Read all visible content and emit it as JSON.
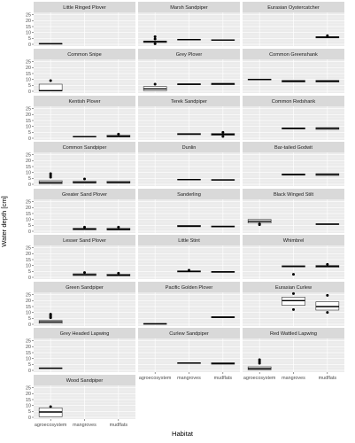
{
  "chart_data": {
    "type": "boxplot",
    "xlabel": "Habitat",
    "ylabel": "Water depth [cm]",
    "categories": [
      "agroecosystem",
      "mangroves",
      "mudflats"
    ],
    "y_ticks": [
      0,
      5,
      10,
      15,
      20,
      25
    ],
    "ylim": [
      -1.5,
      27
    ],
    "grid": true,
    "facets": [
      {
        "title": "Little Ringed Plover",
        "boxes": [
          {
            "category": "agroecosystem",
            "q1": 0.3,
            "median": 0.5,
            "q3": 0.7,
            "outliers": []
          }
        ]
      },
      {
        "title": "Marsh Sandpiper",
        "boxes": [
          {
            "category": "agroecosystem",
            "q1": 1.5,
            "median": 2.2,
            "q3": 2.8,
            "outliers": [
              0.5,
              4.5,
              6.5
            ]
          },
          {
            "category": "mangroves",
            "q1": 3.6,
            "median": 4.0,
            "q3": 4.3,
            "outliers": []
          },
          {
            "category": "mudflats",
            "q1": 3.3,
            "median": 3.6,
            "q3": 3.9,
            "outliers": []
          }
        ]
      },
      {
        "title": "Eurasian Oystercatcher",
        "boxes": [
          {
            "category": "mudflats",
            "q1": 5.4,
            "median": 6.0,
            "q3": 6.5,
            "outliers": [
              7.3
            ]
          }
        ]
      },
      {
        "title": "Common Snipe",
        "boxes": [
          {
            "category": "agroecosystem",
            "q1": 0.2,
            "median": 0.5,
            "q3": 6.0,
            "outliers": [
              9.0
            ]
          }
        ]
      },
      {
        "title": "Grey Plover",
        "boxes": [
          {
            "category": "agroecosystem",
            "q1": 0.5,
            "median": 2.0,
            "q3": 4.0,
            "outliers": [
              6.0
            ]
          },
          {
            "category": "mangroves",
            "q1": 5.5,
            "median": 6.0,
            "q3": 6.3,
            "outliers": []
          },
          {
            "category": "mudflats",
            "q1": 5.5,
            "median": 6.2,
            "q3": 6.8,
            "outliers": []
          }
        ]
      },
      {
        "title": "Common Greenshank",
        "boxes": [
          {
            "category": "agroecosystem",
            "q1": 9.6,
            "median": 10.0,
            "q3": 10.3,
            "outliers": []
          },
          {
            "category": "mangroves",
            "q1": 7.8,
            "median": 8.5,
            "q3": 9.2,
            "outliers": []
          },
          {
            "category": "mudflats",
            "q1": 7.8,
            "median": 8.5,
            "q3": 9.2,
            "outliers": []
          }
        ]
      },
      {
        "title": "Kentish Plover",
        "boxes": [
          {
            "category": "mangroves",
            "q1": 1.0,
            "median": 1.3,
            "q3": 1.6,
            "outliers": []
          },
          {
            "category": "mudflats",
            "q1": 1.0,
            "median": 1.6,
            "q3": 2.5,
            "outliers": [
              3.5
            ]
          }
        ]
      },
      {
        "title": "Terek Sandpiper",
        "boxes": [
          {
            "category": "mangroves",
            "q1": 3.0,
            "median": 3.5,
            "q3": 4.0,
            "outliers": []
          },
          {
            "category": "mudflats",
            "q1": 2.5,
            "median": 3.2,
            "q3": 4.0,
            "outliers": [
              1.5,
              5.0
            ]
          }
        ]
      },
      {
        "title": "Common Redshank",
        "boxes": [
          {
            "category": "mangroves",
            "q1": 7.8,
            "median": 8.3,
            "q3": 8.8,
            "outliers": []
          },
          {
            "category": "mudflats",
            "q1": 7.5,
            "median": 8.3,
            "q3": 9.0,
            "outliers": []
          }
        ]
      },
      {
        "title": "Common Sandpiper",
        "boxes": [
          {
            "category": "agroecosystem",
            "q1": 0.5,
            "median": 1.5,
            "q3": 3.0,
            "outliers": [
              6.0,
              7.5,
              9.0
            ]
          },
          {
            "category": "mangroves",
            "q1": 1.0,
            "median": 1.5,
            "q3": 2.5,
            "outliers": [
              4.5
            ]
          },
          {
            "category": "mudflats",
            "q1": 1.0,
            "median": 1.5,
            "q3": 2.5,
            "outliers": []
          }
        ]
      },
      {
        "title": "Dunlin",
        "boxes": [
          {
            "category": "mangroves",
            "q1": 3.8,
            "median": 4.0,
            "q3": 4.3,
            "outliers": []
          },
          {
            "category": "mudflats",
            "q1": 3.4,
            "median": 3.7,
            "q3": 4.0,
            "outliers": []
          }
        ]
      },
      {
        "title": "Bar-tailed Godwit",
        "boxes": [
          {
            "category": "mangroves",
            "q1": 7.7,
            "median": 8.3,
            "q3": 8.8,
            "outliers": []
          },
          {
            "category": "mudflats",
            "q1": 7.5,
            "median": 8.3,
            "q3": 9.0,
            "outliers": []
          }
        ]
      },
      {
        "title": "Greater Sand Plover",
        "boxes": [
          {
            "category": "mangroves",
            "q1": 1.2,
            "median": 1.8,
            "q3": 2.5,
            "outliers": [
              3.5
            ]
          },
          {
            "category": "mudflats",
            "q1": 1.0,
            "median": 1.6,
            "q3": 2.5,
            "outliers": [
              3.5
            ]
          }
        ]
      },
      {
        "title": "Sanderling",
        "boxes": [
          {
            "category": "mangroves",
            "q1": 3.8,
            "median": 4.3,
            "q3": 5.0,
            "outliers": []
          },
          {
            "category": "mudflats",
            "q1": 3.6,
            "median": 4.0,
            "q3": 4.5,
            "outliers": []
          }
        ]
      },
      {
        "title": "Black Winged Stilt",
        "boxes": [
          {
            "category": "agroecosystem",
            "q1": 7.0,
            "median": 8.5,
            "q3": 10.0,
            "outliers": [
              5.5,
              6.5
            ]
          },
          {
            "category": "mudflats",
            "q1": 5.7,
            "median": 6.0,
            "q3": 6.3,
            "outliers": []
          }
        ]
      },
      {
        "title": "Lesser Sand Plover",
        "boxes": [
          {
            "category": "mangroves",
            "q1": 1.5,
            "median": 2.2,
            "q3": 3.0,
            "outliers": [
              4.0
            ]
          },
          {
            "category": "mudflats",
            "q1": 1.2,
            "median": 1.8,
            "q3": 2.6,
            "outliers": [
              3.5
            ]
          }
        ]
      },
      {
        "title": "Little Stint",
        "boxes": [
          {
            "category": "mangroves",
            "q1": 4.5,
            "median": 5.0,
            "q3": 5.5,
            "outliers": [
              6.0
            ]
          },
          {
            "category": "mudflats",
            "q1": 4.2,
            "median": 4.6,
            "q3": 5.0,
            "outliers": []
          }
        ]
      },
      {
        "title": "Whimbrel",
        "boxes": [
          {
            "category": "mangroves",
            "q1": 8.8,
            "median": 9.3,
            "q3": 9.8,
            "outliers": [
              2.5
            ]
          },
          {
            "category": "mudflats",
            "q1": 8.5,
            "median": 9.3,
            "q3": 10.0,
            "outliers": [
              11.0
            ]
          }
        ]
      },
      {
        "title": "Green Sandpiper",
        "boxes": [
          {
            "category": "agroecosystem",
            "q1": 0.8,
            "median": 2.0,
            "q3": 3.2,
            "outliers": [
              5.5,
              6.5,
              7.5,
              8.5
            ]
          }
        ]
      },
      {
        "title": "Pacific Golden Plover",
        "boxes": [
          {
            "category": "agroecosystem",
            "q1": 0.2,
            "median": 0.4,
            "q3": 0.6,
            "outliers": []
          },
          {
            "category": "mudflats",
            "q1": 5.5,
            "median": 6.0,
            "q3": 6.5,
            "outliers": []
          }
        ]
      },
      {
        "title": "Eurasian Curlew",
        "boxes": [
          {
            "category": "mangroves",
            "q1": 16.0,
            "median": 20.0,
            "q3": 23.0,
            "outliers": [
              12.5,
              26.0
            ]
          },
          {
            "category": "mudflats",
            "q1": 12.0,
            "median": 15.0,
            "q3": 19.0,
            "outliers": [
              10.0,
              24.5
            ]
          }
        ]
      },
      {
        "title": "Grey Headed Lapwing",
        "boxes": [
          {
            "category": "agroecosystem",
            "q1": 1.5,
            "median": 1.8,
            "q3": 2.1,
            "outliers": []
          }
        ]
      },
      {
        "title": "Curlew Sandpiper",
        "boxes": [
          {
            "category": "mangroves",
            "q1": 5.8,
            "median": 6.2,
            "q3": 6.5,
            "outliers": []
          },
          {
            "category": "mudflats",
            "q1": 5.2,
            "median": 5.8,
            "q3": 6.5,
            "outliers": []
          }
        ]
      },
      {
        "title": "Red Wattled Lapwing",
        "boxes": [
          {
            "category": "agroecosystem",
            "q1": 0.5,
            "median": 1.5,
            "q3": 3.0,
            "outliers": [
              6.0,
              7.5,
              9.0
            ]
          }
        ]
      },
      {
        "title": "Wood Sandpiper",
        "boxes": [
          {
            "category": "agroecosystem",
            "q1": 0.5,
            "median": 4.5,
            "q3": 8.0,
            "outliers": [
              9.0
            ]
          }
        ]
      }
    ]
  },
  "colors": {
    "panel_bg": "#ebebeb",
    "strip_bg": "#d9d9d9",
    "grid_major": "#ffffff",
    "grid_minor": "#f5f5f5",
    "box_fill": "#ffffff",
    "box_line": "#333333",
    "point": "#000000",
    "tick_text": "#4d4d4d"
  }
}
